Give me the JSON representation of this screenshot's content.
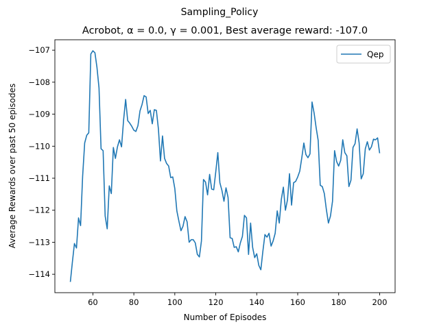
{
  "figure": {
    "suptitle": "Sampling_Policy",
    "title": "Acrobot, α = 0.0, γ = 0.001,  Best average reward: -107.0"
  },
  "chart_data": {
    "type": "line",
    "suptitle": "Sampling_Policy",
    "title": "Acrobot, α = 0.0, γ = 0.001,  Best average reward: -107.0",
    "xlabel": "Number of Episodes",
    "ylabel": "Average Rewards over past 50 episodes",
    "xlim": [
      41.45,
      207.55
    ],
    "ylim": [
      -114.575,
      -106.675
    ],
    "xticks": [
      60,
      80,
      100,
      120,
      140,
      160,
      180,
      200
    ],
    "yticks": [
      -114,
      -113,
      -112,
      -111,
      -110,
      -109,
      -108,
      -107
    ],
    "grid": false,
    "legend": {
      "position": "top-right",
      "entries": [
        "Qep"
      ]
    },
    "series": [
      {
        "name": "Qep",
        "color": "#1f77b4",
        "x_start": 49,
        "x_step": 1,
        "values": [
          -114.24,
          -113.62,
          -113.04,
          -113.18,
          -112.24,
          -112.48,
          -110.94,
          -109.9,
          -109.66,
          -109.58,
          -107.12,
          -107.02,
          -107.08,
          -107.54,
          -108.18,
          -110.08,
          -110.14,
          -112.18,
          -112.58,
          -111.24,
          -111.48,
          -110.04,
          -110.38,
          -110.02,
          -109.8,
          -110.02,
          -109.18,
          -108.54,
          -109.2,
          -109.28,
          -109.38,
          -109.5,
          -109.54,
          -109.36,
          -108.9,
          -108.7,
          -108.42,
          -108.46,
          -108.98,
          -108.88,
          -109.3,
          -108.86,
          -108.88,
          -109.46,
          -110.46,
          -109.68,
          -110.38,
          -110.54,
          -110.62,
          -110.98,
          -110.96,
          -111.32,
          -112.02,
          -112.34,
          -112.64,
          -112.5,
          -112.2,
          -112.36,
          -113.0,
          -112.92,
          -112.92,
          -113.02,
          -113.38,
          -113.46,
          -112.96,
          -111.04,
          -111.12,
          -111.52,
          -110.88,
          -111.34,
          -111.36,
          -110.8,
          -110.2,
          -111.14,
          -111.38,
          -111.72,
          -111.3,
          -111.6,
          -112.86,
          -112.88,
          -113.16,
          -113.14,
          -113.3,
          -113.02,
          -112.82,
          -112.16,
          -112.24,
          -113.38,
          -112.4,
          -113.16,
          -113.48,
          -113.36,
          -113.72,
          -113.86,
          -113.28,
          -112.76,
          -112.84,
          -112.72,
          -113.12,
          -112.96,
          -112.72,
          -112.02,
          -112.4,
          -111.66,
          -111.28,
          -112.0,
          -111.68,
          -110.86,
          -111.84,
          -111.14,
          -111.1,
          -110.96,
          -110.78,
          -110.36,
          -109.9,
          -110.26,
          -110.36,
          -110.24,
          -108.62,
          -108.96,
          -109.42,
          -109.82,
          -111.22,
          -111.26,
          -111.48,
          -111.98,
          -112.4,
          -112.18,
          -111.72,
          -110.14,
          -110.48,
          -110.62,
          -110.44,
          -109.8,
          -110.2,
          -110.3,
          -111.26,
          -111.06,
          -110.04,
          -109.92,
          -109.46,
          -109.9,
          -111.02,
          -110.86,
          -110.08,
          -109.86,
          -110.12,
          -110.02,
          -109.78,
          -109.8,
          -109.74,
          -110.22
        ]
      }
    ]
  }
}
